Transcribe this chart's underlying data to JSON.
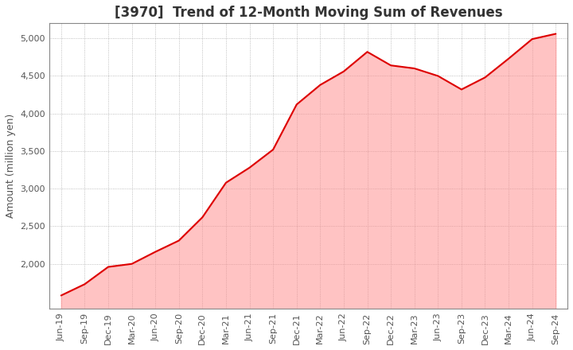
{
  "title": "[3970]  Trend of 12-Month Moving Sum of Revenues",
  "ylabel": "Amount (million yen)",
  "line_color": "#dd0000",
  "fill_color": "#ff8888",
  "fill_alpha": 0.5,
  "background_color": "#ffffff",
  "plot_background_color": "#ffffff",
  "grid_color": "#999999",
  "ylim": [
    1400,
    5200
  ],
  "yticks": [
    2000,
    2500,
    3000,
    3500,
    4000,
    4500,
    5000
  ],
  "dates": [
    "Jun-19",
    "Sep-19",
    "Dec-19",
    "Mar-20",
    "Jun-20",
    "Sep-20",
    "Dec-20",
    "Mar-21",
    "Jun-21",
    "Sep-21",
    "Dec-21",
    "Mar-22",
    "Jun-22",
    "Sep-22",
    "Dec-22",
    "Mar-23",
    "Jun-23",
    "Sep-23",
    "Dec-23",
    "Mar-24",
    "Jun-24",
    "Sep-24"
  ],
  "values": [
    1580,
    1730,
    1960,
    2000,
    2160,
    2310,
    2620,
    3080,
    3280,
    3520,
    4120,
    4380,
    4560,
    4820,
    4640,
    4600,
    4500,
    4320,
    4480,
    4730,
    4990,
    5060
  ],
  "title_fontsize": 12,
  "tick_fontsize": 8,
  "ylabel_fontsize": 9,
  "title_color": "#333333",
  "tick_color": "#555555"
}
